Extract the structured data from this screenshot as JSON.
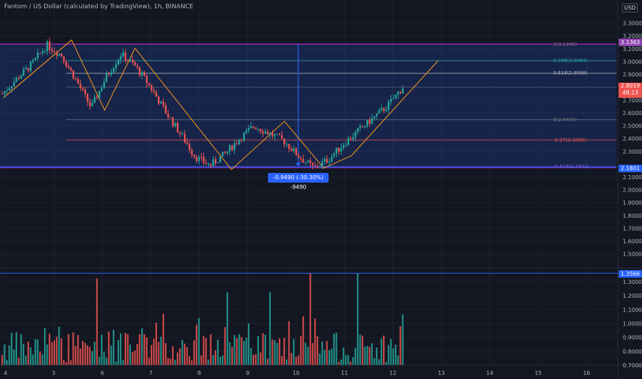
{
  "header": {
    "title": "Fantom / US Dollar (calculated by TradingView), 1h, BINANCE",
    "currency": "USD"
  },
  "price_axis": {
    "ticks": [
      "3.3000",
      "3.2000",
      "3.1000",
      "3.0000",
      "2.9000",
      "2.7000",
      "2.6000",
      "2.5000",
      "2.4000",
      "2.3000",
      "2.1000",
      "2.0000",
      "1.9000",
      "1.8000",
      "1.7000",
      "1.6000",
      "1.5000"
    ],
    "tags": {
      "top": {
        "label": "3.1363",
        "color": "#8e44ad"
      },
      "current_price": "2.8019",
      "countdown": "48:13",
      "bottom": {
        "label": "2.1801",
        "color": "#2962ff"
      }
    }
  },
  "volume_axis": {
    "ticks": [
      "1.3000",
      "1.2000",
      "1.1000",
      "1.0000",
      "0.9000",
      "0.8000",
      "0.7000"
    ],
    "tag": "1.3566"
  },
  "time_axis": {
    "ticks": [
      "4",
      "5",
      "6",
      "7",
      "8",
      "9",
      "10",
      "11",
      "12",
      "13",
      "14",
      "15",
      "16"
    ]
  },
  "fib_levels": [
    {
      "label": "1(3.1340)",
      "color": "#787b86"
    },
    {
      "label": "0.786(3.0084)",
      "color": "#26a69a"
    },
    {
      "label": "0.618(2.9098)",
      "color": "#b2b5be"
    },
    {
      "label": "0(2.5470)",
      "color": "#787b86"
    },
    {
      "label": "-0.27(2.3885)",
      "color": "#ef5350"
    },
    {
      "label": "-0.618(2.1842)",
      "color": "#7e57c2"
    }
  ],
  "measure_label": "-0.9490 (-30.30%) -9490",
  "colors": {
    "up": "#26a69a",
    "down": "#ef5350",
    "box": "#2962ff",
    "background": "#131722"
  },
  "chart_data": {
    "type": "candlestick",
    "symbol": "Fantom / US Dollar",
    "timeframe": "1h",
    "ylim": [
      1.45,
      3.33
    ],
    "x_ticks": [
      "4",
      "5",
      "6",
      "7",
      "8",
      "9",
      "10",
      "11",
      "12",
      "13",
      "14",
      "15",
      "16"
    ],
    "close_path": [
      2.75,
      2.87,
      2.98,
      3.13,
      3.05,
      2.85,
      2.64,
      2.88,
      3.06,
      2.96,
      2.8,
      2.61,
      2.44,
      2.26,
      2.19,
      2.28,
      2.4,
      2.5,
      2.44,
      2.38,
      2.26,
      2.17,
      2.24,
      2.36,
      2.46,
      2.56,
      2.66,
      2.8
    ],
    "last_price": 2.8019,
    "volume_ylim": [
      0.7,
      1.36
    ]
  }
}
